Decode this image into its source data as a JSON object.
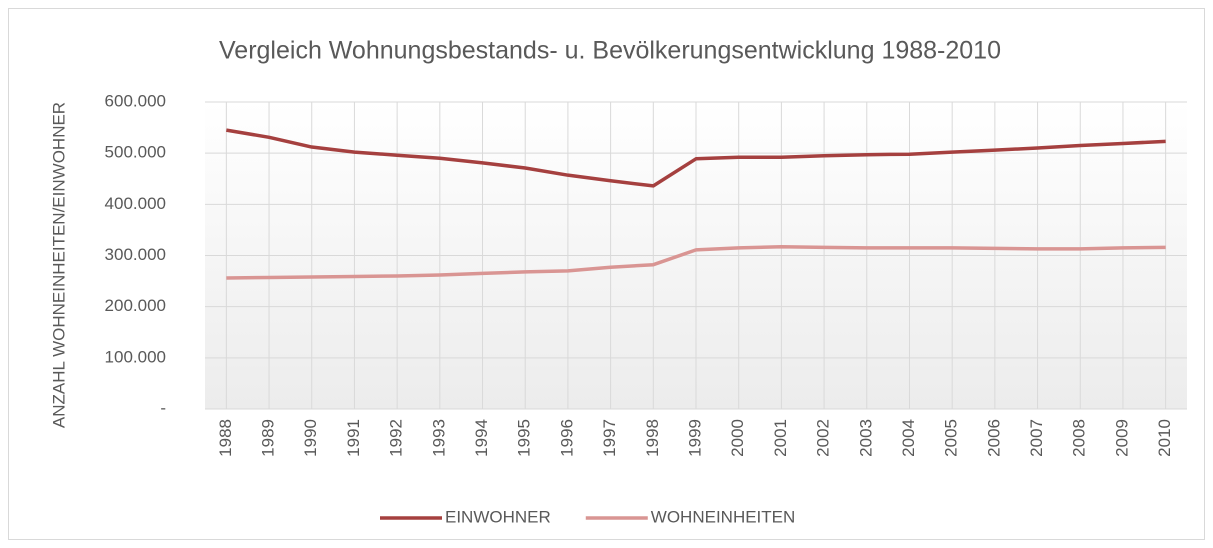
{
  "chart_data": {
    "type": "line",
    "title": "Vergleich Wohnungsbestands- u. Bevölkerungsentwicklung 1988-2010",
    "y_label": "ANZAHL WOHNEINHEITEN/EINWOHNER",
    "categories": [
      "1988",
      "1989",
      "1990",
      "1991",
      "1992",
      "1993",
      "1994",
      "1995",
      "1996",
      "1997",
      "1998",
      "1999",
      "2000",
      "2001",
      "2002",
      "2003",
      "2004",
      "2005",
      "2006",
      "2007",
      "2008",
      "2009",
      "2010"
    ],
    "series": [
      {
        "name": "EINWOHNER",
        "color": "#a5403f",
        "values": [
          545000,
          531000,
          512000,
          502000,
          496000,
          490000,
          481000,
          471000,
          457000,
          446000,
          436000,
          489000,
          492000,
          492000,
          495000,
          497000,
          498000,
          502000,
          506000,
          510000,
          515000,
          519000,
          523000
        ]
      },
      {
        "name": "WOHNEINHEITEN",
        "color": "#d99593",
        "values": [
          256000,
          257000,
          258000,
          259000,
          260000,
          262000,
          265000,
          268000,
          270000,
          277000,
          282000,
          311000,
          315000,
          317000,
          316000,
          315000,
          315000,
          315000,
          314000,
          313000,
          313000,
          315000,
          316000
        ]
      }
    ],
    "ylim": [
      0,
      600000
    ],
    "yticks": [
      {
        "value": 0,
        "label": "-"
      },
      {
        "value": 100000,
        "label": "100.000"
      },
      {
        "value": 200000,
        "label": "200.000"
      },
      {
        "value": 300000,
        "label": "300.000"
      },
      {
        "value": 400000,
        "label": "400.000"
      },
      {
        "value": 500000,
        "label": "500.000"
      },
      {
        "value": 600000,
        "label": "600.000"
      }
    ],
    "grid": true,
    "legend": "bottom"
  }
}
